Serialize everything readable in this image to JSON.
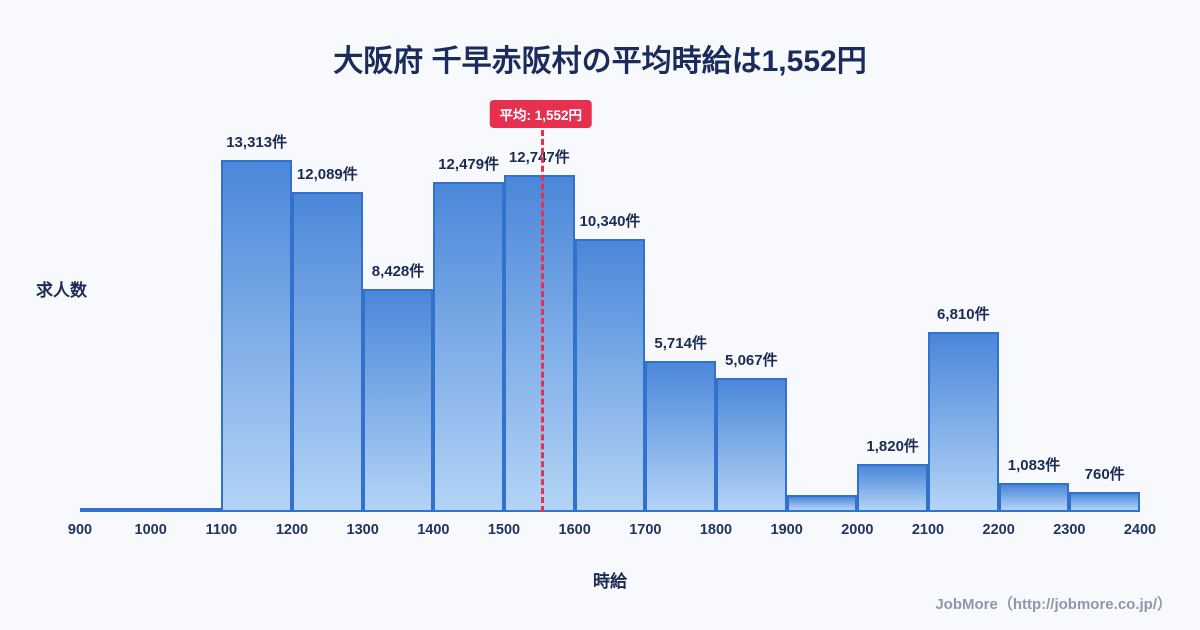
{
  "title": "大阪府 千早赤阪村の平均時給は1,552円",
  "footer": "JobMore（http://jobmore.co.jp/）",
  "colors": {
    "background": "#f7f9fc",
    "title": "#1a2b5c",
    "bar_top": "#4b87d9",
    "bar_bottom": "#b3d4f6",
    "bar_border": "#3272cc",
    "label": "#1c2b52",
    "tick": "#22345e",
    "red": "#e63050",
    "footer": "#8e98a8"
  },
  "chart_data": {
    "type": "bar",
    "title": "大阪府 千早赤阪村の平均時給は1,552円",
    "xlabel": "時給",
    "ylabel": "求人数",
    "x_range": [
      900,
      2400
    ],
    "bin_width": 100,
    "y_max": 13313,
    "grid": false,
    "legend": false,
    "x_ticks": [
      "900",
      "1000",
      "1100",
      "1200",
      "1300",
      "1400",
      "1500",
      "1600",
      "1700",
      "1800",
      "1900",
      "2000",
      "2100",
      "2200",
      "2300",
      "2400"
    ],
    "bins": [
      {
        "range": "900-1000",
        "value": 100,
        "label": ""
      },
      {
        "range": "1000-1100",
        "value": 100,
        "label": ""
      },
      {
        "range": "1100-1200",
        "value": 13313,
        "label": "13,313件"
      },
      {
        "range": "1200-1300",
        "value": 12089,
        "label": "12,089件"
      },
      {
        "range": "1300-1400",
        "value": 8428,
        "label": "8,428件"
      },
      {
        "range": "1400-1500",
        "value": 12479,
        "label": "12,479件"
      },
      {
        "range": "1500-1600",
        "value": 12747,
        "label": "12,747件"
      },
      {
        "range": "1600-1700",
        "value": 10340,
        "label": "10,340件"
      },
      {
        "range": "1700-1800",
        "value": 5714,
        "label": "5,714件"
      },
      {
        "range": "1800-1900",
        "value": 5067,
        "label": "5,067件"
      },
      {
        "range": "1900-2000",
        "value": 640,
        "label": ""
      },
      {
        "range": "2000-2100",
        "value": 1820,
        "label": "1,820件"
      },
      {
        "range": "2100-2200",
        "value": 6810,
        "label": "6,810件"
      },
      {
        "range": "2200-2300",
        "value": 1083,
        "label": "1,083件"
      },
      {
        "range": "2300-2400",
        "value": 760,
        "label": "760件"
      }
    ],
    "mean_line": {
      "x": 1552,
      "label": "平均: 1,552円"
    }
  }
}
